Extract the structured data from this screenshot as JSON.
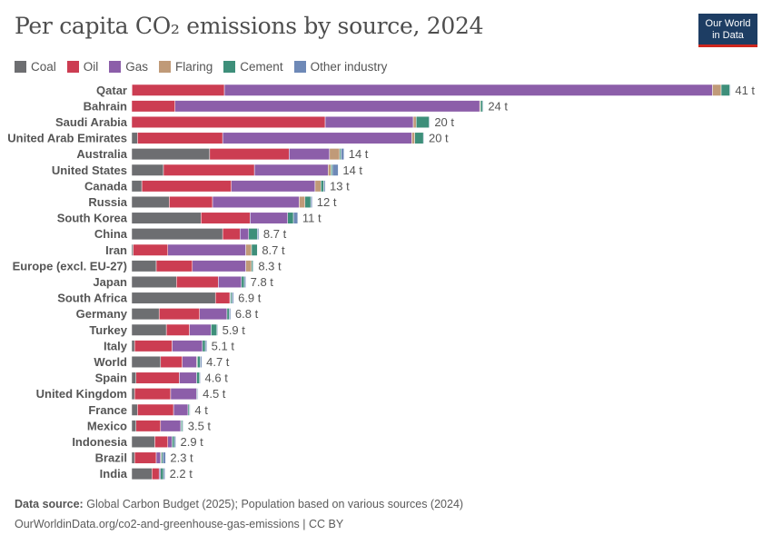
{
  "header": {
    "title": "Per capita CO₂ emissions by source, 2024",
    "logo_line1": "Our World",
    "logo_line2": "in Data"
  },
  "footer": {
    "source_label": "Data source:",
    "source_text": "Global Carbon Budget (2025); Population based on various sources (2024)",
    "url_text": "OurWorldinData.org/co2-and-greenhouse-gas-emissions | CC BY"
  },
  "chart_data": {
    "type": "bar",
    "orientation": "horizontal",
    "stacked": true,
    "title": "Per capita CO₂ emissions by source, 2024",
    "unit": "t",
    "legend_position": "top-left",
    "grid": false,
    "categories": [
      "Qatar",
      "Bahrain",
      "Saudi Arabia",
      "United Arab Emirates",
      "Australia",
      "United States",
      "Canada",
      "Russia",
      "South Korea",
      "China",
      "Iran",
      "Europe (excl. EU-27)",
      "Japan",
      "South Africa",
      "Germany",
      "Turkey",
      "Italy",
      "World",
      "Spain",
      "United Kingdom",
      "France",
      "Mexico",
      "Indonesia",
      "Brazil",
      "India"
    ],
    "totals_labels": [
      "41 t",
      "24 t",
      "20 t",
      "20 t",
      "14 t",
      "14 t",
      "13 t",
      "12 t",
      "11 t",
      "8.7 t",
      "8.7 t",
      "8.3 t",
      "7.8 t",
      "6.9 t",
      "6.8 t",
      "5.9 t",
      "5.1 t",
      "4.7 t",
      "4.6 t",
      "4.5 t",
      "4 t",
      "3.5 t",
      "2.9 t",
      "2.3 t",
      "2.2 t"
    ],
    "series": [
      {
        "name": "Coal",
        "color": "#6d6e71",
        "values": [
          0.02,
          0,
          0,
          0.4,
          5.4,
          2.2,
          0.7,
          2.6,
          4.8,
          6.3,
          0.1,
          1.7,
          3.1,
          5.8,
          1.9,
          2.4,
          0.2,
          2.0,
          0.3,
          0.2,
          0.4,
          0.3,
          1.6,
          0.2,
          1.4
        ]
      },
      {
        "name": "Oil",
        "color": "#cc3d52",
        "values": [
          6.4,
          3.0,
          13.4,
          5.9,
          5.5,
          6.3,
          6.2,
          3.0,
          3.4,
          1.2,
          2.4,
          2.5,
          2.9,
          1.0,
          2.8,
          1.6,
          2.6,
          1.5,
          3.0,
          2.5,
          2.5,
          1.7,
          0.9,
          1.5,
          0.5
        ]
      },
      {
        "name": "Gas",
        "color": "#8c5ea9",
        "values": [
          33.8,
          21.1,
          6.1,
          13.1,
          2.8,
          5.1,
          5.8,
          6.0,
          2.6,
          0.6,
          5.4,
          3.7,
          1.6,
          0.05,
          1.9,
          1.5,
          2.1,
          1.0,
          1.2,
          1.8,
          1.0,
          1.4,
          0.3,
          0.3,
          0.1
        ]
      },
      {
        "name": "Flaring",
        "color": "#c09a78",
        "values": [
          0.6,
          0.06,
          0.2,
          0.2,
          0.7,
          0.2,
          0.4,
          0.4,
          0,
          0,
          0.4,
          0.4,
          0,
          0,
          0,
          0,
          0,
          0.05,
          0,
          0,
          0,
          0.02,
          0,
          0.05,
          0
        ]
      },
      {
        "name": "Cement",
        "color": "#3e8f7a",
        "values": [
          0.6,
          0.15,
          0.9,
          0.6,
          0.1,
          0.1,
          0.2,
          0.4,
          0.4,
          0.6,
          0.4,
          0.1,
          0.2,
          0.1,
          0.15,
          0.4,
          0.2,
          0.2,
          0.2,
          0.05,
          0.1,
          0.1,
          0.15,
          0.1,
          0.2
        ]
      },
      {
        "name": "Other industry",
        "color": "#6e89b7",
        "values": [
          0.05,
          0.05,
          0.05,
          0.05,
          0.2,
          0.4,
          0.1,
          0.1,
          0.3,
          0.1,
          0,
          0.05,
          0.1,
          0.1,
          0.1,
          0.05,
          0.1,
          0.1,
          0.05,
          0.05,
          0.05,
          0.05,
          0.1,
          0.2,
          0.1
        ]
      }
    ]
  }
}
